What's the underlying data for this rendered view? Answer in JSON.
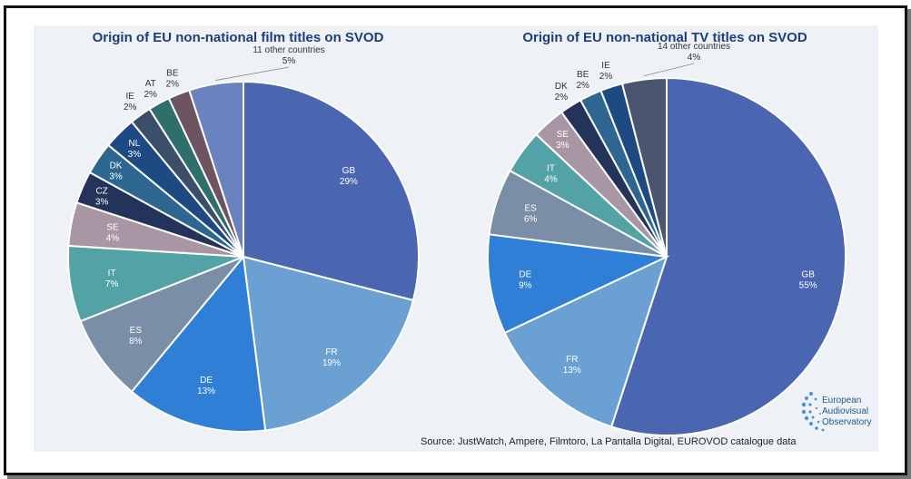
{
  "chart_data": [
    {
      "type": "pie",
      "title": "Origin of EU non-national film titles on SVOD",
      "slices": [
        {
          "label": "GB",
          "value": 29,
          "pct": "29%",
          "color": "#4a66b0"
        },
        {
          "label": "FR",
          "value": 19,
          "pct": "19%",
          "color": "#6ba0d2"
        },
        {
          "label": "DE",
          "value": 13,
          "pct": "13%",
          "color": "#2f7fd6"
        },
        {
          "label": "ES",
          "value": 8,
          "pct": "8%",
          "color": "#7b8ea8"
        },
        {
          "label": "IT",
          "value": 7,
          "pct": "7%",
          "color": "#53a3a6"
        },
        {
          "label": "SE",
          "value": 4,
          "pct": "4%",
          "color": "#a896a5"
        },
        {
          "label": "CZ",
          "value": 3,
          "pct": "3%",
          "color": "#23335a"
        },
        {
          "label": "DK",
          "value": 3,
          "pct": "3%",
          "color": "#2d6691"
        },
        {
          "label": "NL",
          "value": 3,
          "pct": "3%",
          "color": "#1e4a84"
        },
        {
          "label": "IE",
          "value": 2,
          "pct": "2%",
          "color": "#3b4f6a"
        },
        {
          "label": "AT",
          "value": 2,
          "pct": "2%",
          "color": "#2e6f6b"
        },
        {
          "label": "BE",
          "value": 2,
          "pct": "2%",
          "color": "#6c5460"
        },
        {
          "label": "11 other countries",
          "value": 5,
          "pct": "5%",
          "color": "#6a82c0"
        }
      ]
    },
    {
      "type": "pie",
      "title": "Origin of EU non-national TV titles on SVOD",
      "slices": [
        {
          "label": "GB",
          "value": 55,
          "pct": "55%",
          "color": "#4a66b0"
        },
        {
          "label": "FR",
          "value": 13,
          "pct": "13%",
          "color": "#6ba0d2"
        },
        {
          "label": "DE",
          "value": 9,
          "pct": "9%",
          "color": "#2f7fd6"
        },
        {
          "label": "ES",
          "value": 6,
          "pct": "6%",
          "color": "#7b8ea8"
        },
        {
          "label": "IT",
          "value": 4,
          "pct": "4%",
          "color": "#53a3a6"
        },
        {
          "label": "SE",
          "value": 3,
          "pct": "3%",
          "color": "#a896a5"
        },
        {
          "label": "DK",
          "value": 2,
          "pct": "2%",
          "color": "#23335a"
        },
        {
          "label": "BE",
          "value": 2,
          "pct": "2%",
          "color": "#2d6691"
        },
        {
          "label": "IE",
          "value": 2,
          "pct": "2%",
          "color": "#1e4a84"
        },
        {
          "label": "14 other countries",
          "value": 4,
          "pct": "4%",
          "color": "#4a5670"
        }
      ]
    }
  ],
  "source": "Source: JustWatch, Ampere, Filmtoro, La Pantalla Digital, EUROVOD catalogue data",
  "logo": {
    "line1": "European",
    "line2": "Audiovisual",
    "line3": "Observatory"
  },
  "colors": {
    "title": "#1f3d7a",
    "label_light": "#ffffff",
    "label_dark": "#333333"
  }
}
